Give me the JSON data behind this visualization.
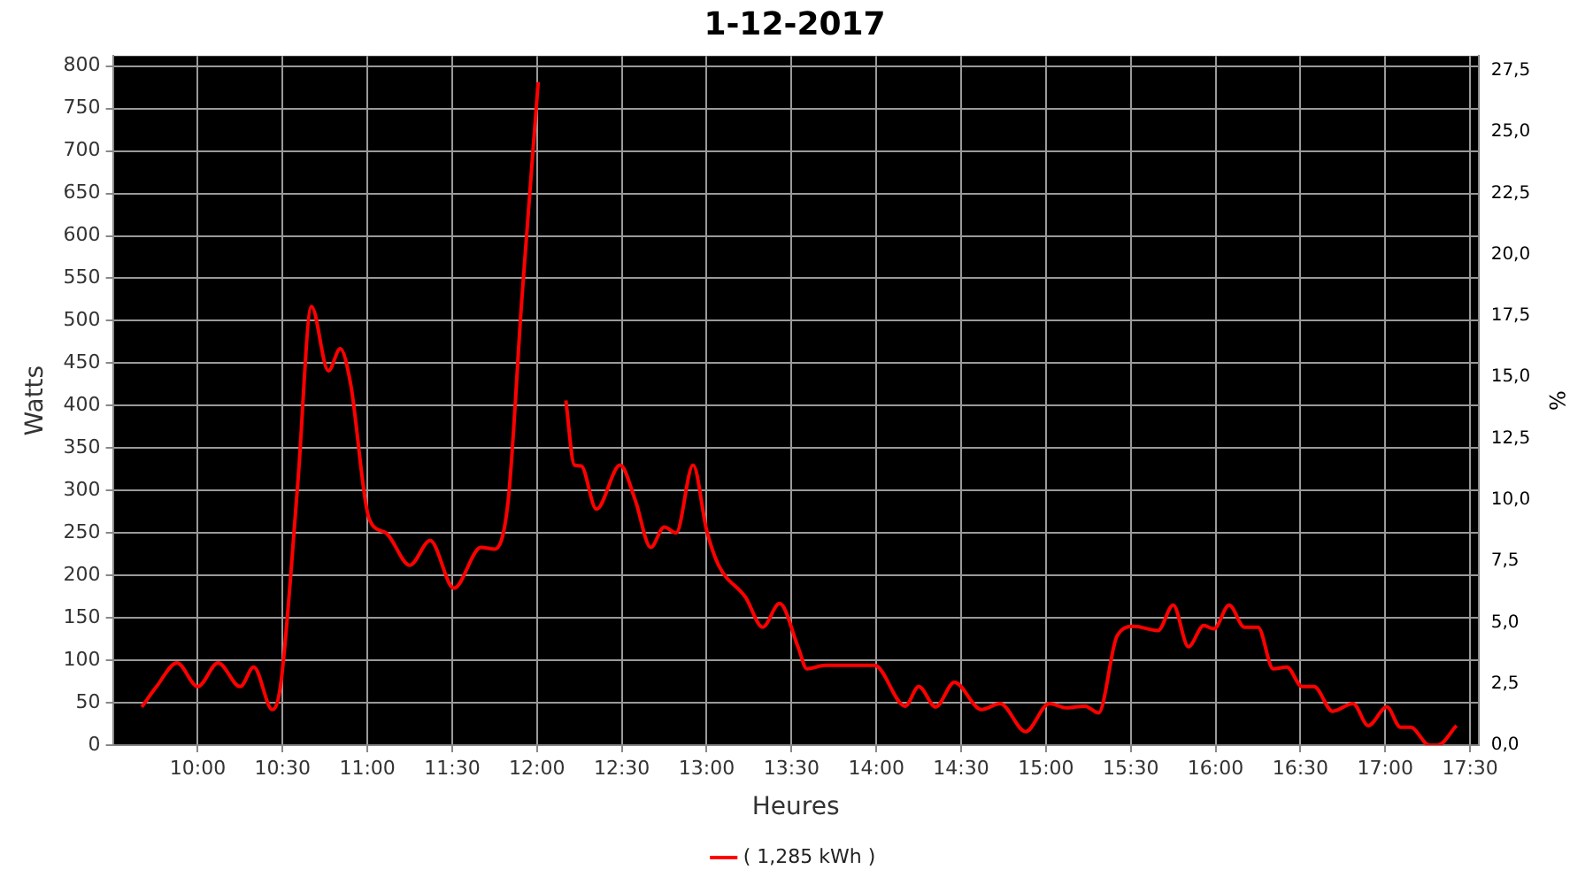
{
  "chart_data": {
    "type": "line",
    "title": "1-12-2017",
    "xlabel": "Heures",
    "ylabel": "Watts",
    "y2label": "%",
    "xlim": [
      9.5,
      17.55
    ],
    "xticks": [
      {
        "value": 10,
        "label": "10:00"
      },
      {
        "value": 10.5,
        "label": "10:30"
      },
      {
        "value": 11,
        "label": "11:00"
      },
      {
        "value": 11.5,
        "label": "11:30"
      },
      {
        "value": 12,
        "label": "12:00"
      },
      {
        "value": 12.5,
        "label": "12:30"
      },
      {
        "value": 13,
        "label": "13:00"
      },
      {
        "value": 13.5,
        "label": "13:30"
      },
      {
        "value": 14,
        "label": "14:00"
      },
      {
        "value": 14.5,
        "label": "14:30"
      },
      {
        "value": 15,
        "label": "15:00"
      },
      {
        "value": 15.5,
        "label": "15:30"
      },
      {
        "value": 16,
        "label": "16:00"
      },
      {
        "value": 16.5,
        "label": "16:30"
      },
      {
        "value": 17,
        "label": "17:00"
      },
      {
        "value": 17.5,
        "label": "17:30"
      }
    ],
    "ylim": [
      0,
      812
    ],
    "yticks": [
      0,
      50,
      100,
      150,
      200,
      250,
      300,
      350,
      400,
      450,
      500,
      550,
      600,
      650,
      700,
      750,
      800
    ],
    "y2lim": [
      0,
      28.1
    ],
    "y2ticks": [
      {
        "value": 0,
        "label": "0,0"
      },
      {
        "value": 2.5,
        "label": "2,5"
      },
      {
        "value": 5,
        "label": "5,0"
      },
      {
        "value": 7.5,
        "label": "7,5"
      },
      {
        "value": 10,
        "label": "10,0"
      },
      {
        "value": 12.5,
        "label": "12,5"
      },
      {
        "value": 15,
        "label": "15,0"
      },
      {
        "value": 17.5,
        "label": "17,5"
      },
      {
        "value": 20,
        "label": "20,0"
      },
      {
        "value": 22.5,
        "label": "22,5"
      },
      {
        "value": 25,
        "label": "25,0"
      },
      {
        "value": 27.5,
        "label": "27,5"
      }
    ],
    "grid": true,
    "legend": "bottom",
    "marker": "none",
    "line_style": "solid",
    "series": [
      {
        "name": "( 1,285 kWh )",
        "color": "#ff0000",
        "x": [
          9.67,
          9.757,
          9.878,
          10.0,
          10.12,
          10.25,
          10.33,
          10.44,
          10.49,
          10.59,
          10.67,
          10.77,
          10.84,
          10.9,
          11.01,
          11.11,
          11.25,
          11.37,
          11.51,
          11.67,
          11.75,
          11.83,
          11.91,
          12.007,
          12.03,
          12.07,
          12.17,
          12.22,
          12.26,
          12.35,
          12.49,
          12.58,
          12.67,
          12.75,
          12.82,
          12.92,
          13.0,
          13.07,
          13.23,
          13.33,
          13.43,
          13.54,
          13.59,
          13.7,
          13.99,
          14.17,
          14.25,
          14.35,
          14.46,
          14.62,
          14.73,
          14.88,
          15.02,
          15.12,
          15.23,
          15.31,
          15.42,
          15.52,
          15.66,
          15.75,
          15.84,
          15.93,
          15.99,
          16.08,
          16.17,
          16.25,
          16.34,
          16.42,
          16.51,
          16.58,
          16.69,
          16.81,
          16.9,
          17.01,
          17.09,
          17.15,
          17.26,
          17.31,
          17.42
        ],
        "values": [
          45,
          69,
          97,
          69,
          97,
          69,
          92,
          42,
          73,
          309,
          517,
          441,
          467,
          427,
          267,
          250,
          212,
          241,
          185,
          233,
          231,
          288,
          524,
          781,
          null,
          null,
          406,
          330,
          329,
          278,
          330,
          288,
          233,
          257,
          250,
          330,
          253,
          212,
          174,
          139,
          167,
          115,
          90,
          94,
          94,
          46,
          69,
          45,
          74,
          42,
          49,
          16,
          49,
          44,
          46,
          38,
          129,
          140,
          135,
          165,
          116,
          141,
          137,
          165,
          139,
          139,
          90,
          92,
          69,
          69,
          40,
          49,
          23,
          45,
          21,
          21,
          0,
          0,
          23
        ]
      }
    ]
  }
}
